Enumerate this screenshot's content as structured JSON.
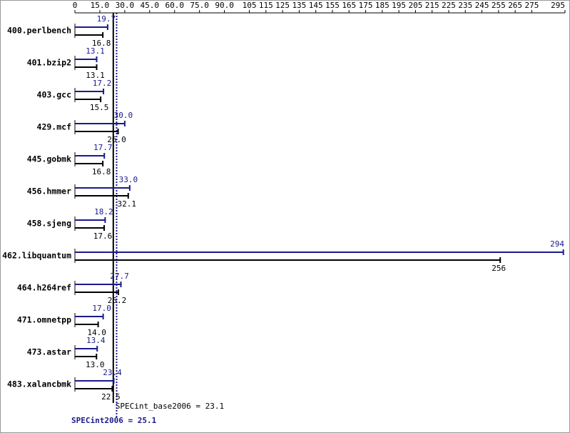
{
  "chart_data": {
    "type": "bar",
    "orientation": "horizontal",
    "categories": [
      "400.perlbench",
      "401.bzip2",
      "403.gcc",
      "429.mcf",
      "445.gobmk",
      "456.hmmer",
      "458.sjeng",
      "462.libquantum",
      "464.h264ref",
      "471.omnetpp",
      "473.astar",
      "483.xalancbmk"
    ],
    "series": [
      {
        "name": "SPECint2006",
        "color": "#1a1a8c",
        "values": [
          19.7,
          13.1,
          17.2,
          30.0,
          17.7,
          33.0,
          18.2,
          294,
          27.7,
          17.0,
          13.4,
          23.4
        ],
        "value_labels": [
          "19.7",
          "13.1",
          "17.2",
          "30.0",
          "17.7",
          "33.0",
          "18.2",
          "294",
          "27.7",
          "17.0",
          "13.4",
          "23.4"
        ]
      },
      {
        "name": "SPECint_base2006",
        "color": "#000000",
        "values": [
          16.8,
          13.1,
          15.5,
          26.0,
          16.8,
          32.1,
          17.6,
          256,
          26.2,
          14.0,
          13.0,
          22.5
        ],
        "value_labels": [
          "16.8",
          "13.1",
          "15.5",
          "26.0",
          "16.8",
          "32.1",
          "17.6",
          "256",
          "26.2",
          "14.0",
          "13.0",
          "22.5"
        ]
      }
    ],
    "xlim": [
      0,
      295
    ],
    "xticks": [
      0,
      {
        "value": 15,
        "label": "15.0"
      },
      {
        "value": 30,
        "label": "30.0"
      },
      {
        "value": 45,
        "label": "45.0"
      },
      {
        "value": 60,
        "label": "60.0"
      },
      {
        "value": 75,
        "label": "75.0"
      },
      {
        "value": 90,
        "label": "90.0"
      },
      105,
      115,
      125,
      135,
      145,
      155,
      165,
      175,
      185,
      195,
      205,
      215,
      225,
      235,
      245,
      255,
      265,
      275,
      295
    ],
    "reference_lines": [
      {
        "label": "SPECint_base2006 = 23.1",
        "value": 23.1,
        "color": "#000000"
      },
      {
        "label": "SPECint2006 = 25.1",
        "value": 25.1,
        "color": "#1a1a8c"
      }
    ]
  }
}
